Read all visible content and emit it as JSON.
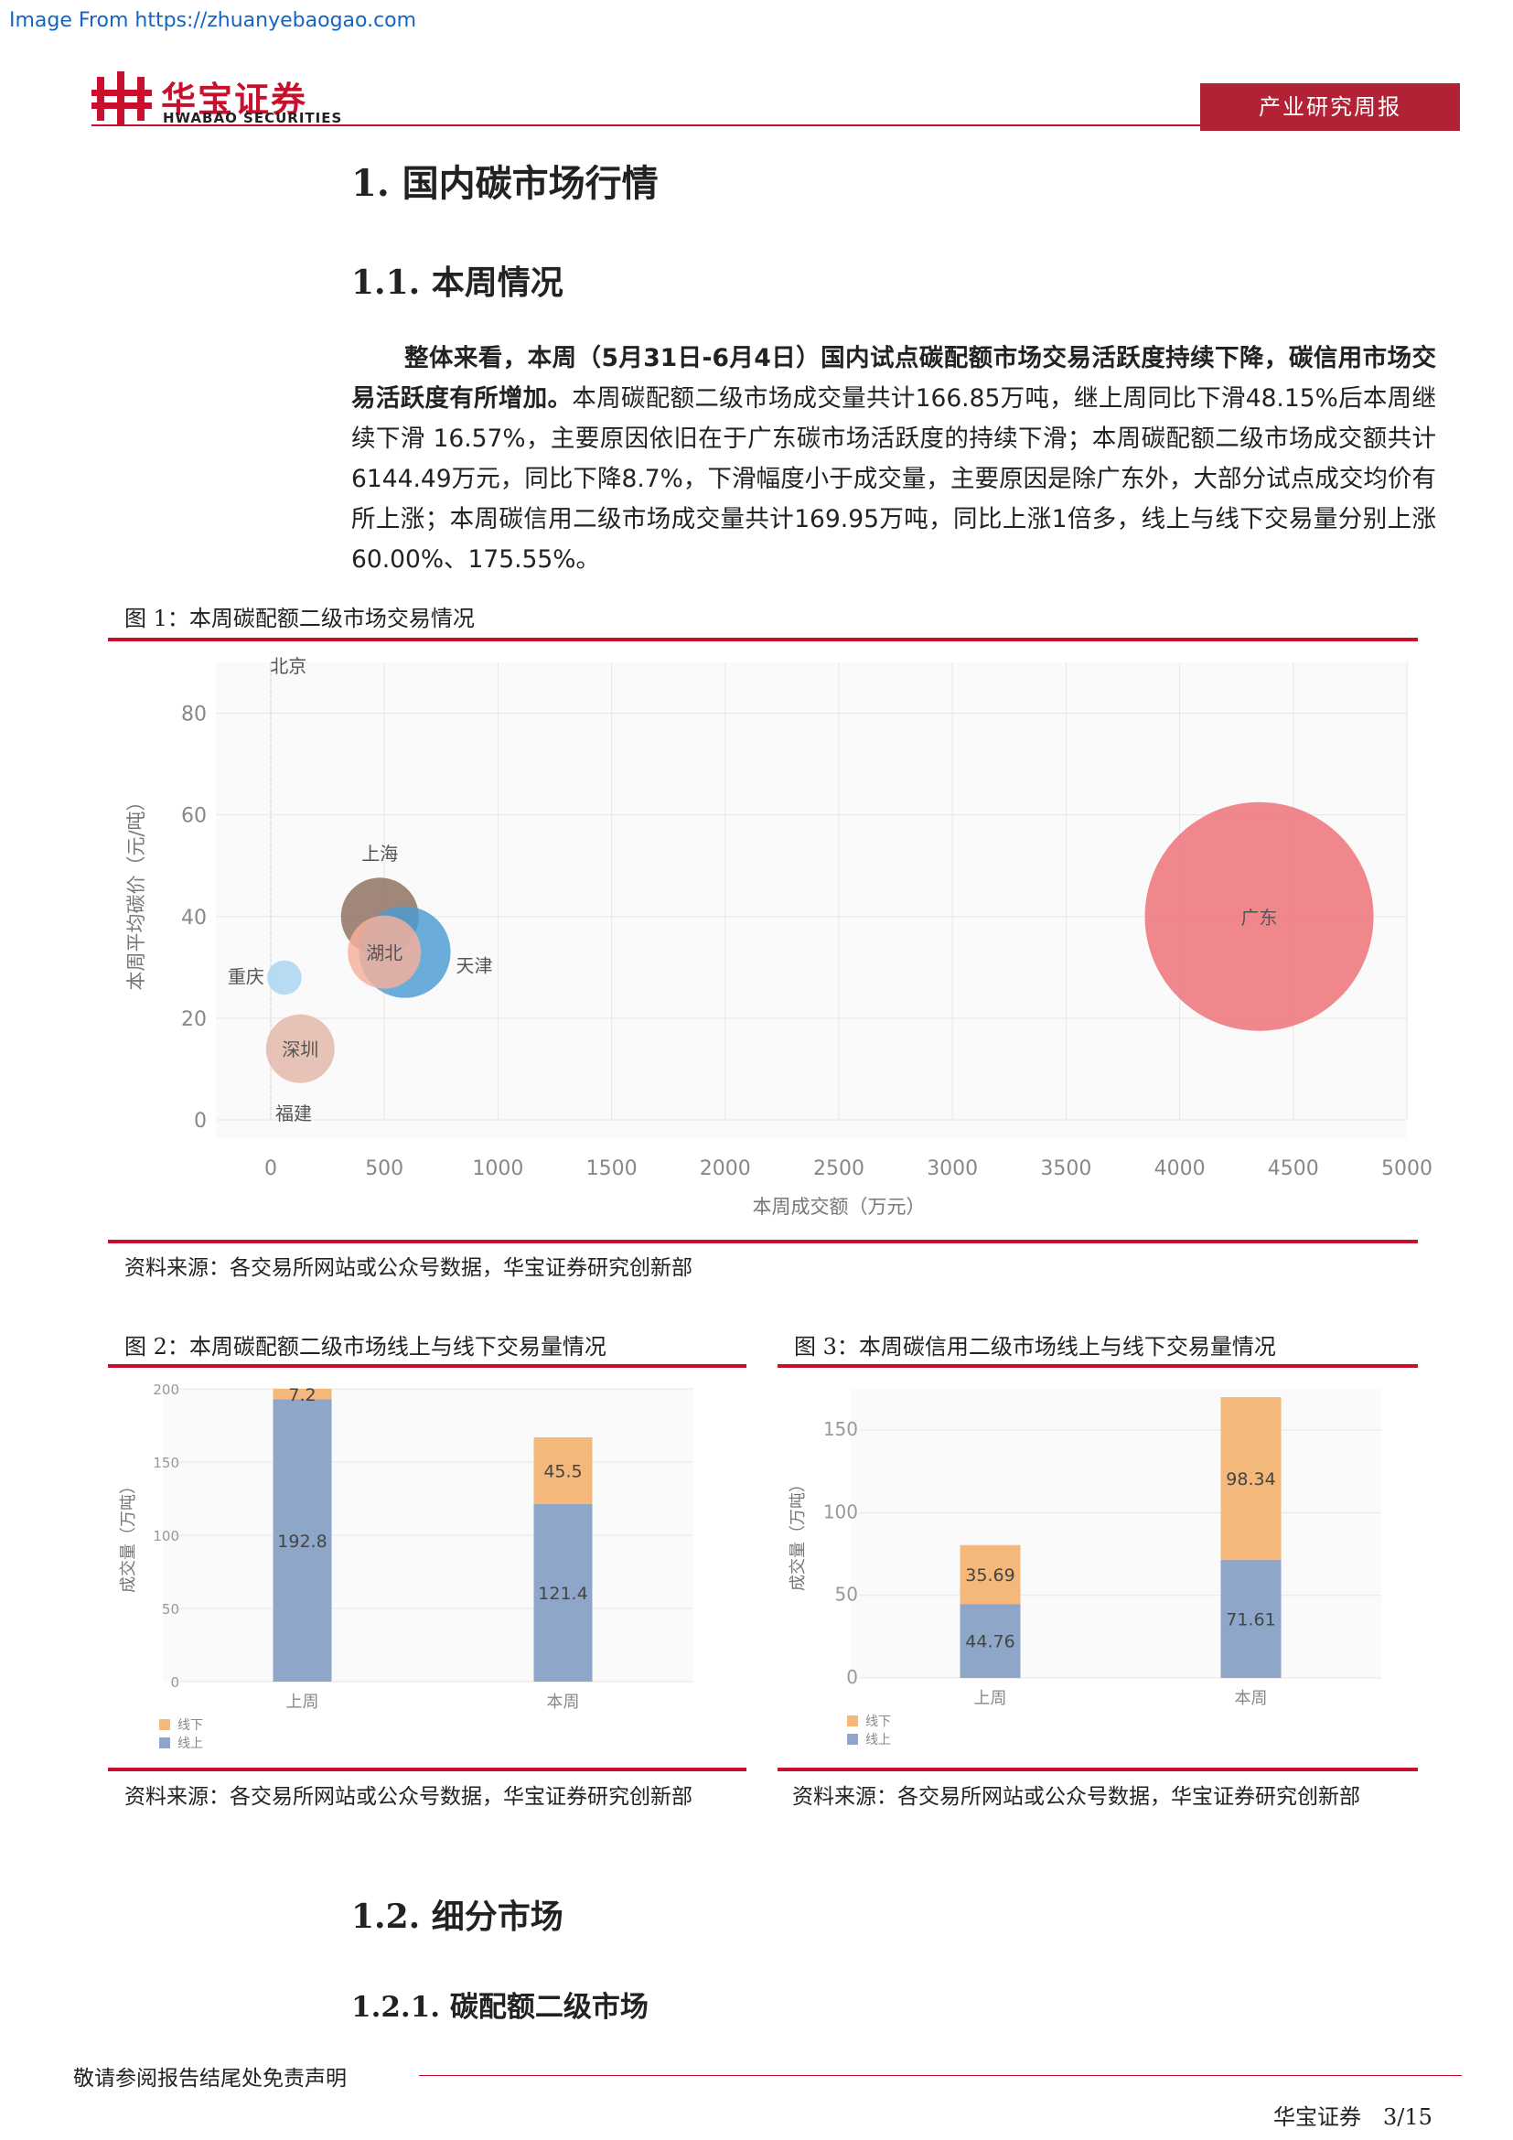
{
  "watermark": "Image From https://zhuanyebaogao.com",
  "header": {
    "logo_cn": "华宝证券",
    "logo_en": "HWABAO SECURITIES",
    "tag": "产业研究周报"
  },
  "section1": {
    "title": "1. 国内碳市场行情"
  },
  "section11": {
    "title": "1.1. 本周情况"
  },
  "paragraph": {
    "bold": "整体来看，本周（5月31日-6月4日）国内试点碳配额市场交易活跃度持续下降，碳信用市场交易活跃度有所增加。",
    "normal": "本周碳配额二级市场成交量共计166.85万吨，继上周同比下滑48.15%后本周继续下滑 16.57%，主要原因依旧在于广东碳市场活跃度的持续下滑；本周碳配额二级市场成交额共计6144.49万元，同比下降8.7%，下滑幅度小于成交量，主要原因是除广东外，大部分试点成交均价有所上涨；本周碳信用二级市场成交量共计169.95万吨，同比上涨1倍多，线上与线下交易量分别上涨60.00%、175.55%。"
  },
  "figure1": {
    "title": "图 1：本周碳配额二级市场交易情况",
    "source": "资料来源：各交易所网站或公众号数据，华宝证券研究创新部"
  },
  "figure2": {
    "title": "图 2：本周碳配额二级市场线上与线下交易量情况",
    "source": "资料来源：各交易所网站或公众号数据，华宝证券研究创新部"
  },
  "figure3": {
    "title": "图 3：本周碳信用二级市场线上与线下交易量情况",
    "source": "资料来源：各交易所网站或公众号数据，华宝证券研究创新部"
  },
  "section12": {
    "title": "1.2. 细分市场"
  },
  "section121": {
    "title": "1.2.1. 碳配额二级市场"
  },
  "footer": {
    "disclaimer": "敬请参阅报告结尾处免责声明",
    "company_page": "华宝证券　3/15"
  },
  "chart_data": [
    {
      "type": "scatter",
      "xlabel": "本周成交额（万元）",
      "ylabel": "本周平均碳价（元/吨）",
      "xlim": [
        0,
        5000
      ],
      "ylim": [
        0,
        90
      ],
      "xticks": [
        0,
        500,
        1000,
        1500,
        2000,
        2500,
        3000,
        3500,
        4000,
        4500,
        5000
      ],
      "yticks": [
        0,
        20,
        40,
        60,
        80
      ],
      "points": [
        {
          "label": "北京",
          "x": 5,
          "y": 88,
          "bubble": 0,
          "color": "#7aa6d6"
        },
        {
          "label": "上海",
          "x": 480,
          "y": 40,
          "bubble": 34,
          "color": "#8c6e5e"
        },
        {
          "label": "天津",
          "x": 590,
          "y": 33,
          "bubble": 40,
          "color": "#4a9cd4"
        },
        {
          "label": "湖北",
          "x": 500,
          "y": 33,
          "bubble": 32,
          "color": "#f7b09a"
        },
        {
          "label": "重庆",
          "x": 60,
          "y": 28,
          "bubble": 15,
          "color": "#a8d4f2"
        },
        {
          "label": "深圳",
          "x": 130,
          "y": 14,
          "bubble": 30,
          "color": "#e3b6a8"
        },
        {
          "label": "福建",
          "x": 20,
          "y": 0,
          "bubble": 0,
          "color": "#999999"
        },
        {
          "label": "广东",
          "x": 4350,
          "y": 40,
          "bubble": 100,
          "color": "#ee6e75"
        }
      ]
    },
    {
      "type": "bar",
      "stacked": true,
      "ylabel": "成交量（万吨）",
      "ylim": [
        0,
        200
      ],
      "yticks": [
        0,
        50,
        100,
        150,
        200
      ],
      "categories": [
        "上周",
        "本周"
      ],
      "series": [
        {
          "name": "线上",
          "values": [
            192.8,
            121.4
          ],
          "color": "#8ea7c8"
        },
        {
          "name": "线下",
          "values": [
            7.2,
            45.5
          ],
          "color": "#f4b87a"
        }
      ]
    },
    {
      "type": "bar",
      "stacked": true,
      "ylabel": "成交量（万吨）",
      "ylim": [
        0,
        175
      ],
      "yticks": [
        0,
        50,
        100,
        150
      ],
      "categories": [
        "上周",
        "本周"
      ],
      "series": [
        {
          "name": "线上",
          "values": [
            44.76,
            71.61
          ],
          "color": "#8ea7c8"
        },
        {
          "name": "线下",
          "values": [
            35.69,
            98.34
          ],
          "color": "#f4b87a"
        }
      ]
    }
  ]
}
